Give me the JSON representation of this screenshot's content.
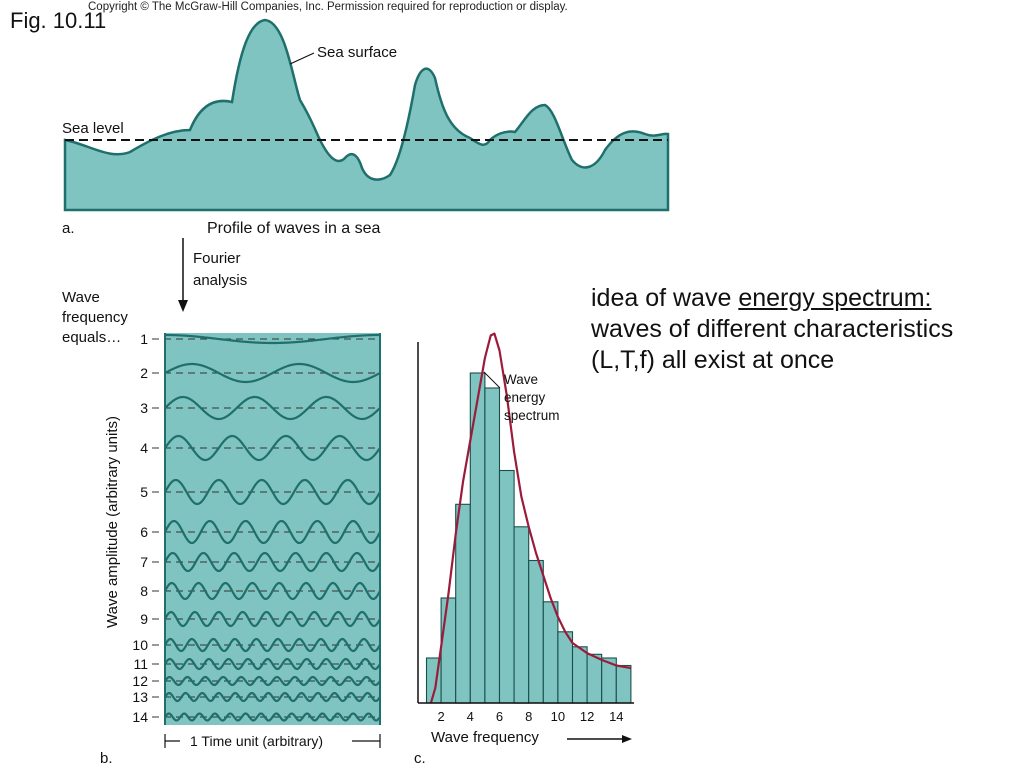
{
  "figure_label": "Fig. 10.11",
  "copyright": "Copyright © The McGraw-Hill Companies, Inc. Permission required for reproduction or display.",
  "colors": {
    "wave_fill": "#7fc4c0",
    "wave_stroke": "#1f6f6c",
    "spectrum_curve": "#9b1b3a"
  },
  "panel_a": {
    "letter": "a.",
    "caption": "Profile of waves in a sea",
    "sea_surface_label": "Sea surface",
    "sea_level_label": "Sea level"
  },
  "fourier": {
    "line1": "Fourier",
    "line2": "analysis"
  },
  "panel_b": {
    "letter": "b.",
    "frequency_heading": [
      "Wave",
      "frequency",
      "equals…"
    ],
    "y_label": "Wave amplitude (arbitrary units)",
    "x_label": "1 Time unit (arbitrary)",
    "frequencies": [
      "1",
      "2",
      "3",
      "4",
      "5",
      "6",
      "7",
      "8",
      "9",
      "10",
      "11",
      "12",
      "13",
      "14"
    ]
  },
  "panel_c": {
    "letter": "c.",
    "spectrum_label": [
      "Wave",
      "energy",
      "spectrum"
    ],
    "x_label": "Wave frequency",
    "x_ticks": [
      "2",
      "4",
      "6",
      "8",
      "10",
      "12",
      "14"
    ],
    "bar_values": [
      0.12,
      0.28,
      0.53,
      0.88,
      0.84,
      0.62,
      0.47,
      0.38,
      0.27,
      0.19,
      0.15,
      0.13,
      0.12,
      0.1
    ]
  },
  "note": {
    "prefix": "idea of wave ",
    "underlined": "energy spectrum:",
    "rest": "waves of different characteristics (L,T,f) all exist at once"
  }
}
